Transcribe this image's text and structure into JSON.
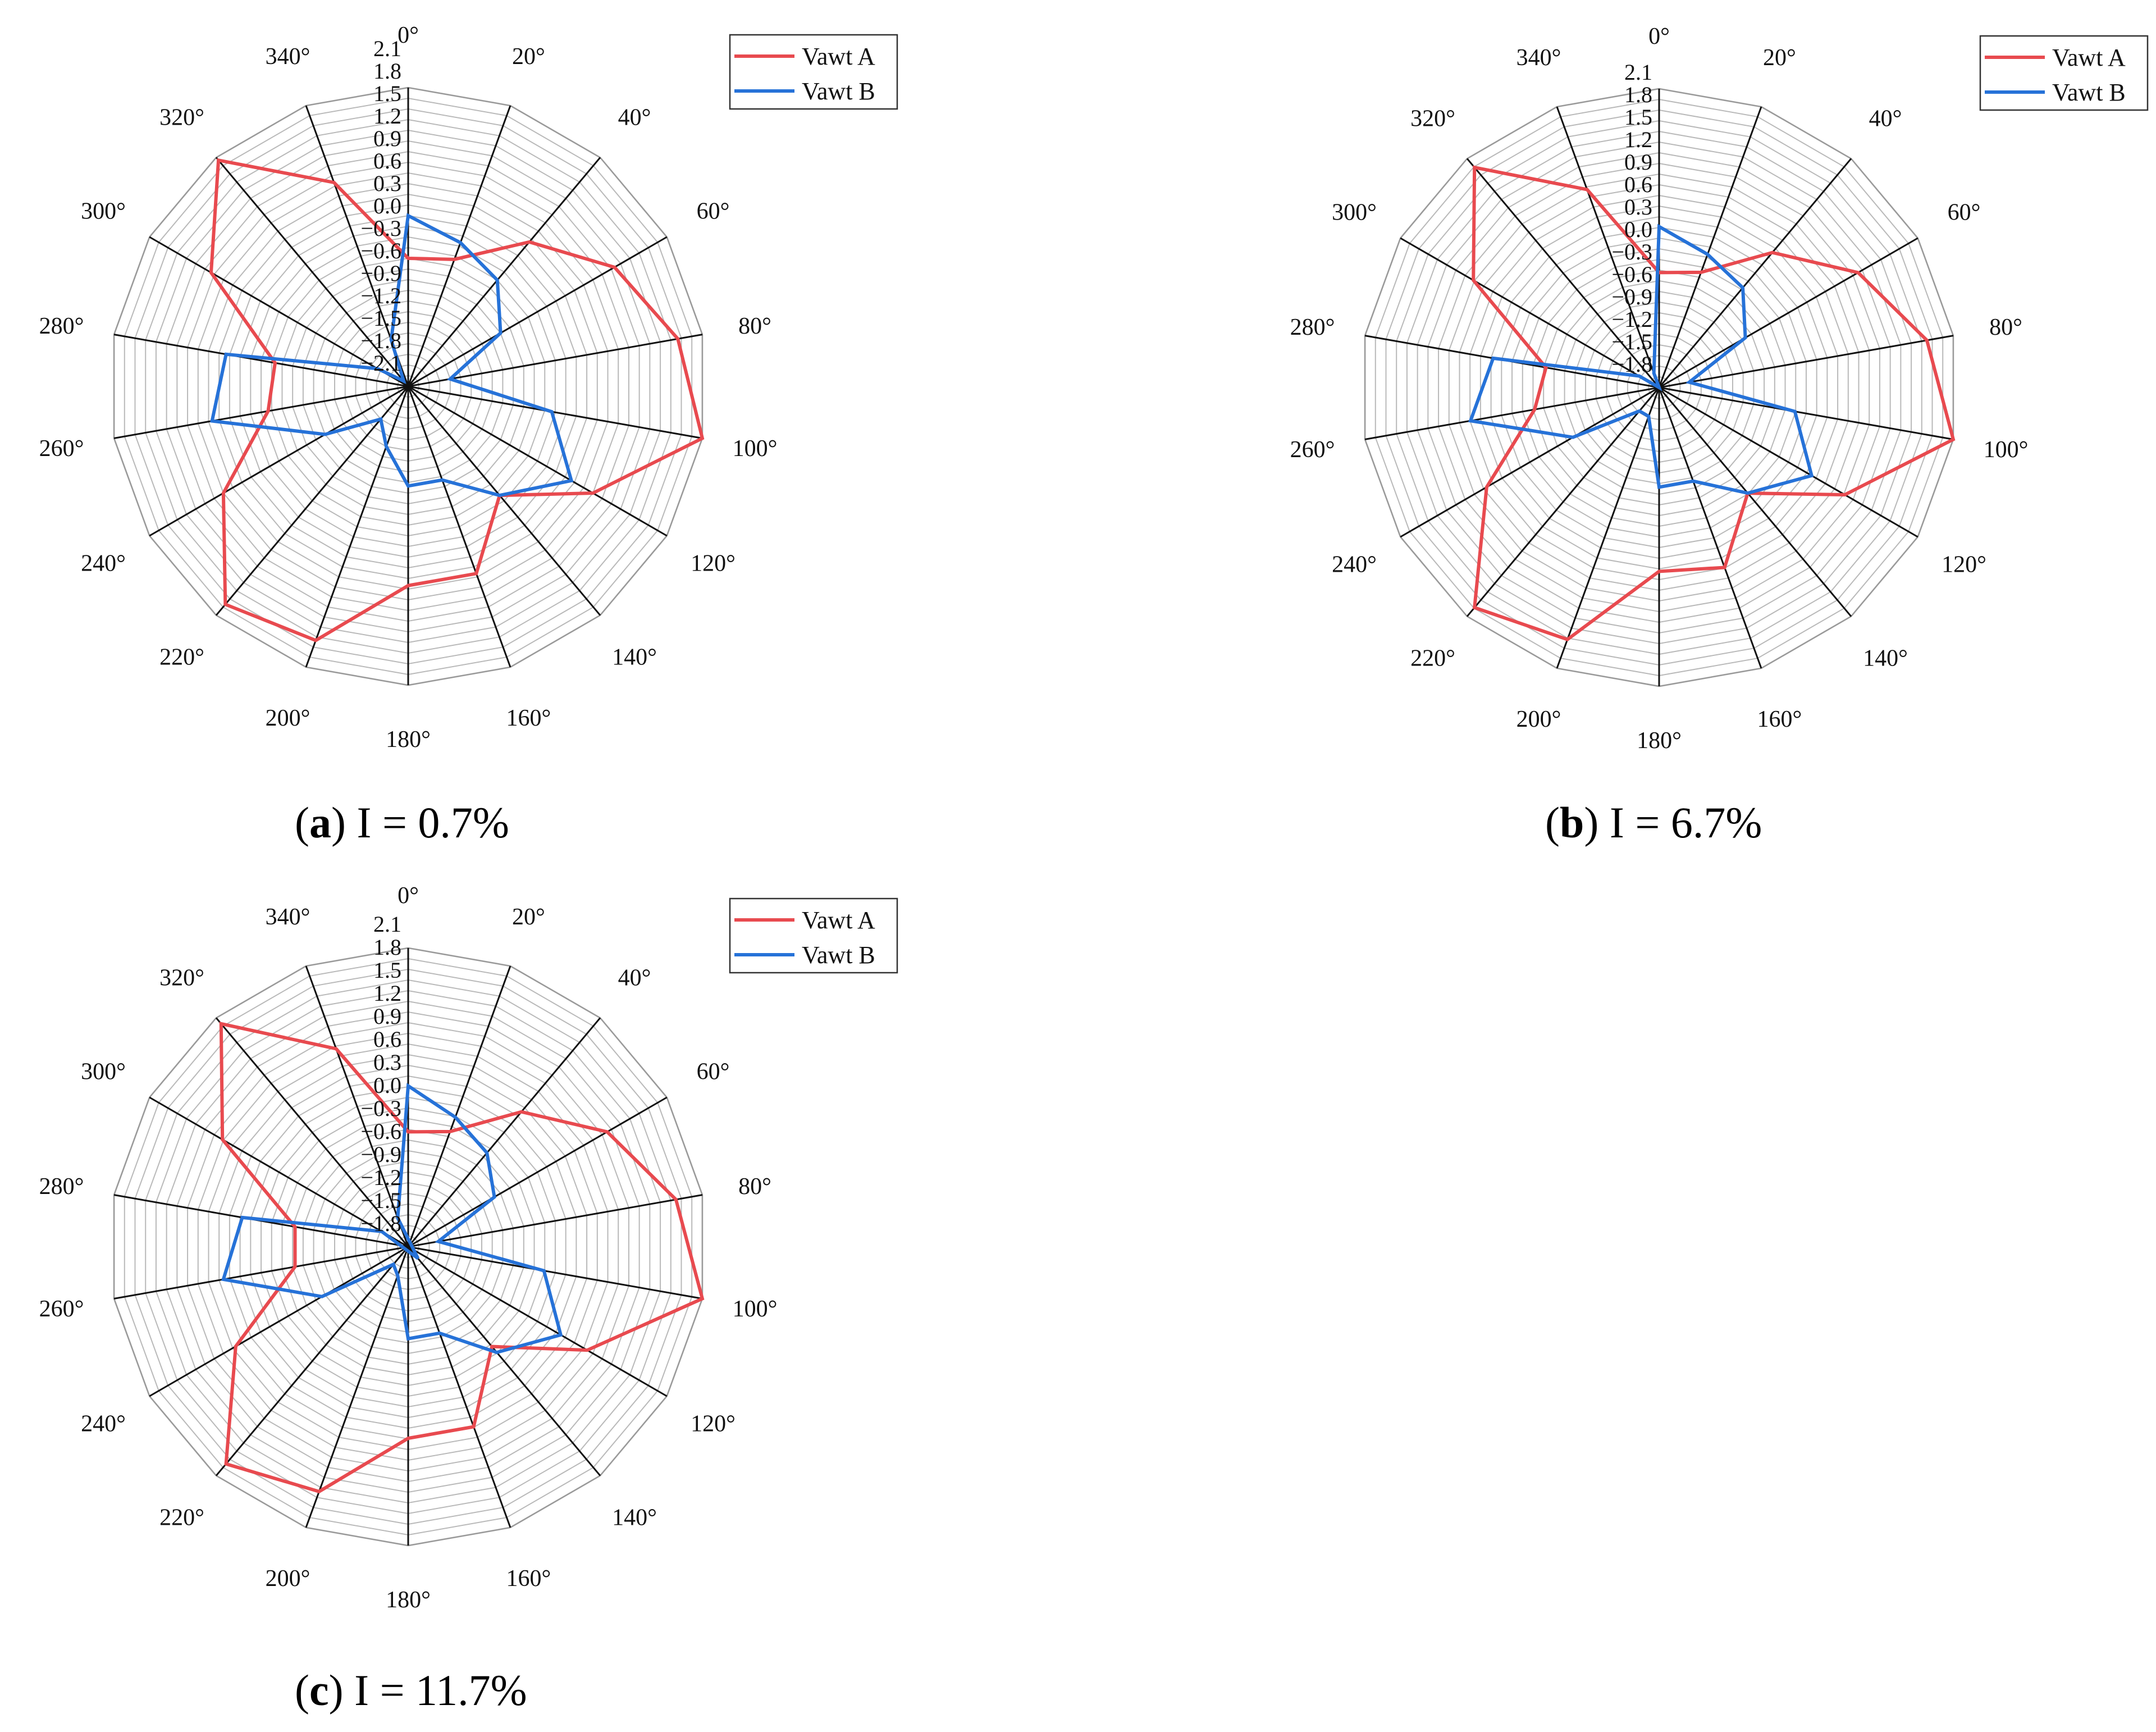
{
  "figure": {
    "series_colors": {
      "Vawt A": "#e84a4f",
      "Vawt B": "#2672d8"
    },
    "panels": [
      {
        "letter": "a",
        "caption_text": " I = 0.7%"
      },
      {
        "letter": "b",
        "caption_text": " I = 6.7%"
      },
      {
        "letter": "c",
        "caption_text": " I = 11.7%"
      }
    ]
  },
  "chart_data": [
    {
      "type": "radar",
      "panel": "(a)",
      "title": "I = 0.7%",
      "angle_labels": [
        "0°",
        "20°",
        "40°",
        "60°",
        "80°",
        "100°",
        "120°",
        "140°",
        "160°",
        "180°",
        "200°",
        "220°",
        "240°",
        "260°",
        "280°",
        "300°",
        "320°",
        "340°"
      ],
      "radial_ticks": [
        "−2.1",
        "−1.8",
        "−1.5",
        "−1.2",
        "−0.9",
        "−0.6",
        "−0.3",
        "0.0",
        "0.3",
        "0.6",
        "0.9",
        "1.2",
        "1.5",
        "1.8",
        "2.1"
      ],
      "rlim": [
        -2.1,
        2.1
      ],
      "legend": "top-right",
      "series": [
        {
          "name": "Vawt A",
          "color": "#e84a4f",
          "values": [
            -0.3,
            -0.2,
            0.55,
            1.25,
            1.75,
            2.1,
            0.9,
            -0.1,
            0.7,
            0.7,
            1.7,
            1.9,
            0.9,
            -0.1,
            -0.2,
            1.1,
            2.05,
            0.95
          ]
        },
        {
          "name": "Vawt B",
          "color": "#2672d8",
          "values": [
            0.3,
            0.05,
            -0.15,
            -0.6,
            -1.5,
            -0.05,
            0.55,
            -0.1,
            -0.7,
            -0.7,
            -1.2,
            -1.5,
            -0.75,
            0.7,
            0.5,
            -1.6,
            -2.0,
            -1.4
          ]
        }
      ]
    },
    {
      "type": "radar",
      "panel": "(b)",
      "title": "I = 6.7%",
      "angle_labels": [
        "0°",
        "20°",
        "40°",
        "60°",
        "80°",
        "100°",
        "120°",
        "140°",
        "160°",
        "180°",
        "200°",
        "220°",
        "240°",
        "260°",
        "280°",
        "300°",
        "320°",
        "340°"
      ],
      "radial_ticks": [
        "−1.8",
        "−1.5",
        "−1.2",
        "−0.9",
        "−0.6",
        "−0.3",
        "0.0",
        "0.3",
        "0.6",
        "0.9",
        "1.2",
        "1.5",
        "1.8",
        "2.1"
      ],
      "rlim": [
        -1.8,
        2.1
      ],
      "legend": "top-right",
      "series": [
        {
          "name": "Vawt A",
          "color": "#e84a4f",
          "values": [
            -0.3,
            -0.2,
            0.5,
            1.2,
            1.75,
            2.1,
            1.0,
            0.0,
            0.7,
            0.6,
            1.7,
            1.95,
            0.8,
            -0.15,
            -0.3,
            1.0,
            1.95,
            0.95
          ]
        },
        {
          "name": "Vawt B",
          "color": "#2672d8",
          "values": [
            0.3,
            0.05,
            -0.1,
            -0.5,
            -1.4,
            0.0,
            0.5,
            0.0,
            -0.5,
            -0.5,
            -1.4,
            -1.4,
            -0.5,
            0.7,
            0.4,
            -1.5,
            -1.8,
            -1.6
          ]
        }
      ]
    },
    {
      "type": "radar",
      "panel": "(c)",
      "title": "I = 11.7%",
      "angle_labels": [
        "0°",
        "20°",
        "40°",
        "60°",
        "80°",
        "100°",
        "120°",
        "140°",
        "160°",
        "180°",
        "200°",
        "220°",
        "240°",
        "260°",
        "280°",
        "300°",
        "320°",
        "340°"
      ],
      "radial_ticks": [
        "−1.8",
        "−1.5",
        "−1.2",
        "−0.9",
        "−0.6",
        "−0.3",
        "0.0",
        "0.3",
        "0.6",
        "0.9",
        "1.2",
        "1.5",
        "1.8",
        "2.1"
      ],
      "rlim": [
        -1.8,
        2.1
      ],
      "legend": "top-right",
      "series": [
        {
          "name": "Vawt A",
          "color": "#e84a4f",
          "values": [
            -0.3,
            -0.2,
            0.5,
            1.2,
            1.75,
            2.1,
            0.9,
            -0.1,
            0.7,
            0.7,
            1.6,
            1.9,
            0.8,
            -0.3,
            -0.3,
            1.0,
            2.0,
            0.95
          ]
        },
        {
          "name": "Vawt B",
          "color": "#2672d8",
          "values": [
            0.3,
            0.0,
            -0.2,
            -0.5,
            -1.4,
            0.0,
            0.5,
            0.0,
            -0.6,
            -0.6,
            -1.4,
            -1.5,
            -0.5,
            0.65,
            0.4,
            -1.4,
            -2.0,
            -1.4
          ]
        }
      ]
    }
  ]
}
